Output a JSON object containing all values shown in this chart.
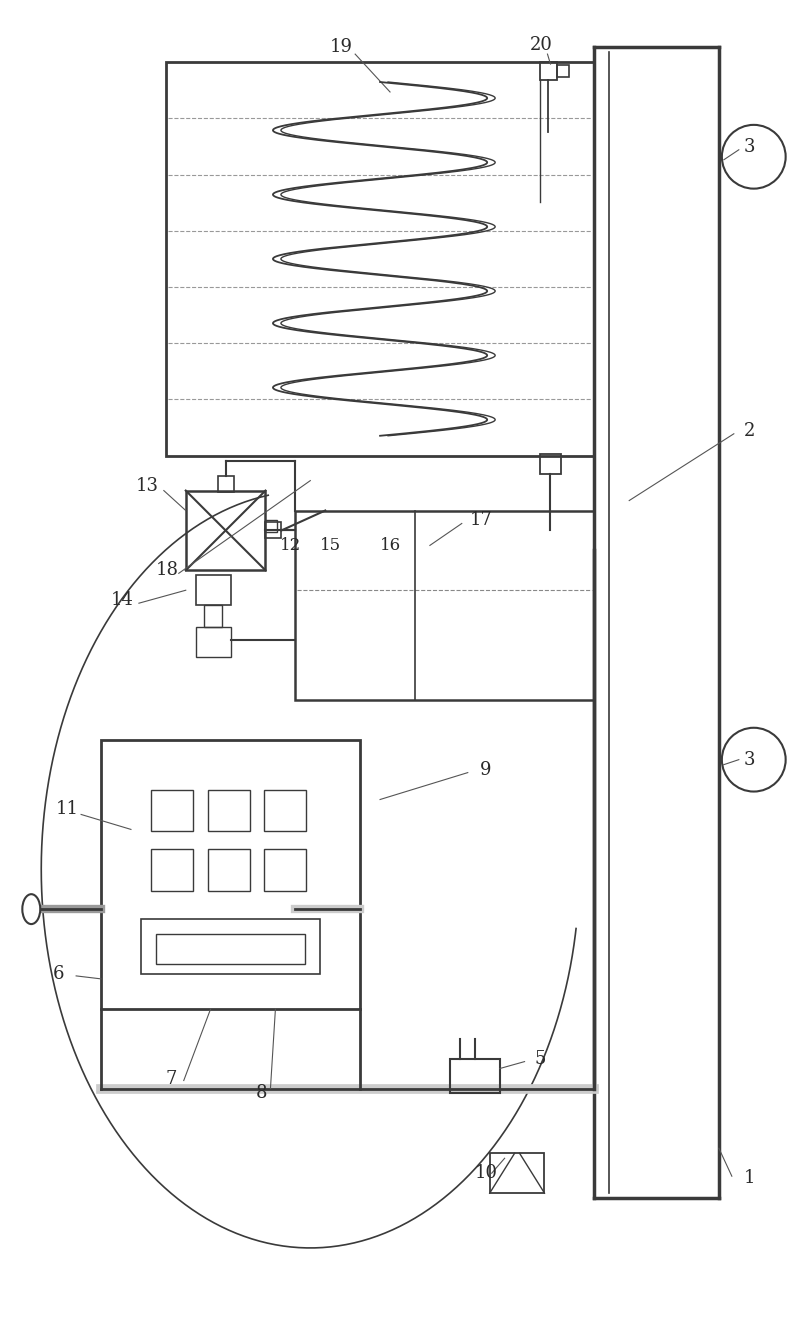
{
  "bg_color": "#ffffff",
  "lc": "#3a3a3a",
  "figsize": [
    8.0,
    13.18
  ],
  "dpi": 100
}
